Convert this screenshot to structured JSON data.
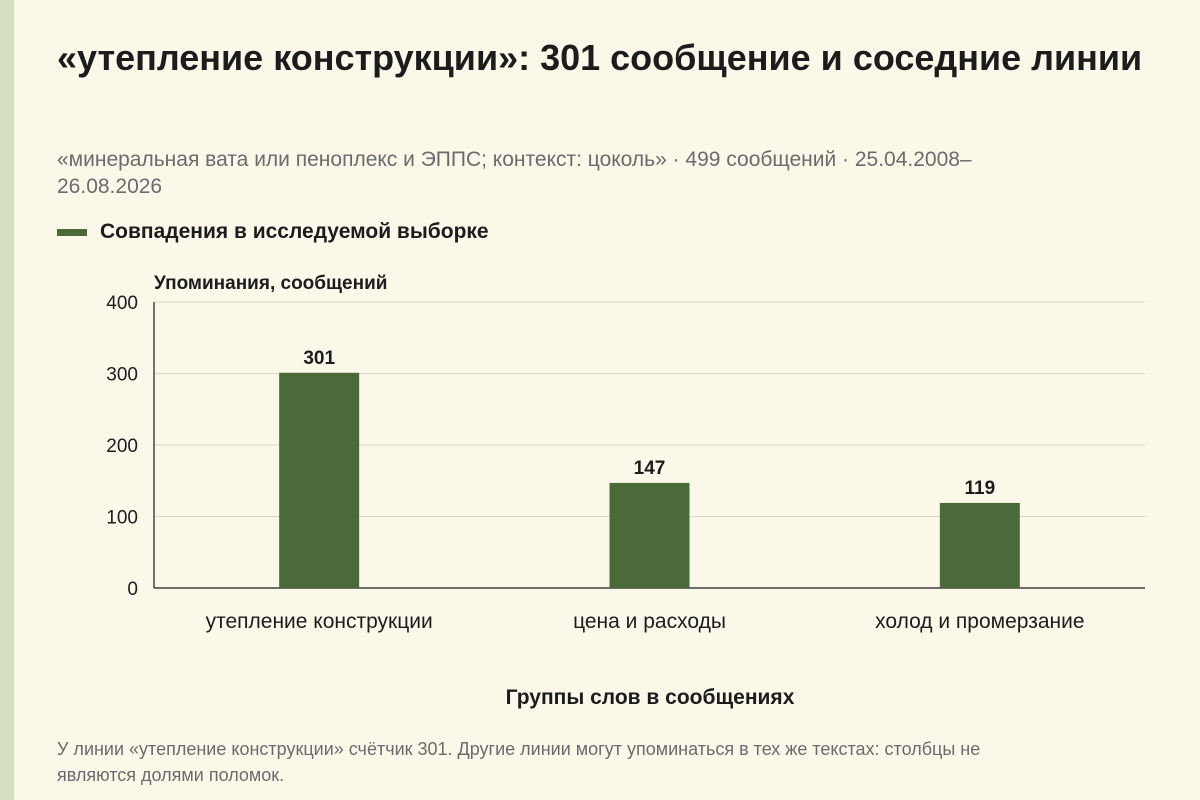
{
  "header": {
    "title": "«утепление конструкции»: 301 сообщение и соседние линии",
    "subtitle": "«минеральная вата или пеноплекс и ЭППС; контекст: цоколь» · 499 сообщений · 25.04.2008–26.08.2026"
  },
  "legend": {
    "label": "Совпадения в исследуемой выборке"
  },
  "footnote": "У линии «утепление конструкции» счётчик 301. Другие линии могут упоминаться в тех же текстах: столбцы не являются долями поломок.",
  "colors": {
    "bar": "#4b6a3a",
    "background": "#fbf8ea",
    "accent_strip": "#d6dfc2"
  },
  "chart_data": {
    "type": "bar",
    "categories": [
      "утепление конструкции",
      "цена и расходы",
      "холод и промерзание"
    ],
    "values": [
      301,
      147,
      119
    ],
    "ylabel": "Упоминания, сообщений",
    "xlabel": "Группы слов в сообщениях",
    "ylim": [
      0,
      400
    ],
    "yticks": [
      0,
      100,
      200,
      300,
      400
    ],
    "grid": true,
    "data_labels": true
  }
}
